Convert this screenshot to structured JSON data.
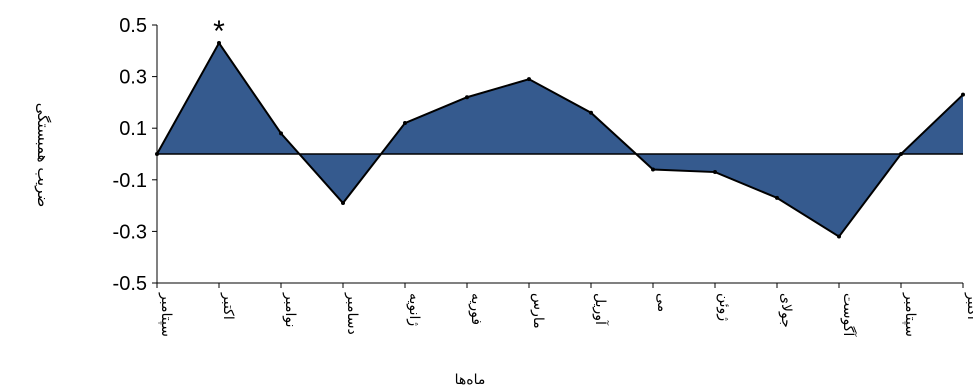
{
  "chart_data": {
    "type": "area",
    "ylabel": "ضریب همبستگی",
    "xlabel": "ماه‌ها",
    "ylim": [
      -0.5,
      0.5
    ],
    "yticks": [
      0.5,
      0.3,
      0.1,
      -0.1,
      -0.3,
      -0.5
    ],
    "ytick_labels": [
      "0.5",
      "0.3",
      "0.1",
      "-0.1",
      "-0.3",
      "-0.5"
    ],
    "categories": [
      "سپتامبر",
      "اکتبر",
      "نوامبر",
      "دسامبر",
      "ژانویه",
      "فوریه",
      "مارس",
      "آوریل",
      "می",
      "ژوئن",
      "جولای",
      "آگوست",
      "سپتامبر",
      "اکتبر"
    ],
    "values": [
      0.0,
      0.43,
      0.08,
      -0.19,
      0.12,
      0.22,
      0.29,
      0.16,
      -0.06,
      -0.07,
      -0.17,
      -0.32,
      0.0,
      0.23
    ],
    "annotation": {
      "text": "*",
      "category_index": 1
    },
    "fill_color": "#355a8e",
    "line_color": "#000000",
    "grid": false,
    "legend": "none"
  }
}
